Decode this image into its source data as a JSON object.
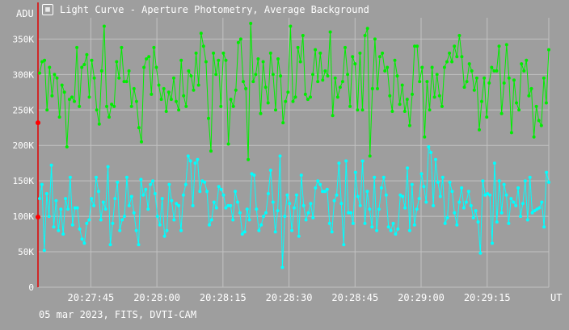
{
  "window": {
    "title": "Light Curve - Aperture Photometry, Average Background",
    "app_icon": "film-frame-icon"
  },
  "footer": {
    "caption": "05 mar 2023, FITS, DVTI-CAM"
  },
  "colors": {
    "background": "#9e9e9e",
    "grid": "#c2c2c2",
    "text": "#ffffff",
    "axis_line": "#e00000",
    "series_green": "#00ee00",
    "series_cyan": "#00ffff",
    "marker_red": "#ff0000"
  },
  "chart_data": {
    "type": "line",
    "title": "Light Curve - Aperture Photometry, Average Background",
    "ylabel": "ADU",
    "xlabel": "UT",
    "ylim": [
      0,
      380000
    ],
    "xlim": [
      "20:27:33",
      "20:29:29"
    ],
    "grid": true,
    "legend": "none",
    "x_ticks": [
      "20:27:45",
      "20:28:00",
      "20:28:15",
      "20:28:30",
      "20:28:45",
      "20:29:00",
      "20:29:15"
    ],
    "y_ticks": [
      {
        "value": 0,
        "label": "0"
      },
      {
        "value": 50000,
        "label": "50K"
      },
      {
        "value": 100000,
        "label": "100K"
      },
      {
        "value": 150000,
        "label": "150K"
      },
      {
        "value": 200000,
        "label": "200K"
      },
      {
        "value": 250000,
        "label": "250K"
      },
      {
        "value": 300000,
        "label": "300K"
      },
      {
        "value": 350000,
        "label": "350K"
      }
    ],
    "reference_markers": [
      {
        "series": "green",
        "value": 232000
      },
      {
        "series": "cyan",
        "value": 99000
      }
    ],
    "series": [
      {
        "id": "green",
        "color": "#00ee00",
        "values": [
          302000,
          318000,
          320000,
          250000,
          310000,
          270000,
          300000,
          295000,
          240000,
          285000,
          275000,
          198000,
          265000,
          268000,
          262000,
          338000,
          255000,
          310000,
          314000,
          328000,
          268000,
          320000,
          295000,
          250000,
          230000,
          305000,
          368000,
          255000,
          240000,
          258000,
          255000,
          318000,
          295000,
          338000,
          290000,
          290000,
          305000,
          255000,
          280000,
          262000,
          225000,
          205000,
          310000,
          322000,
          325000,
          272000,
          338000,
          310000,
          285000,
          265000,
          280000,
          248000,
          275000,
          265000,
          295000,
          262000,
          250000,
          320000,
          270000,
          255000,
          305000,
          298000,
          278000,
          330000,
          285000,
          358000,
          340000,
          318000,
          238000,
          192000,
          330000,
          300000,
          320000,
          255000,
          330000,
          320000,
          202000,
          265000,
          255000,
          278000,
          345000,
          350000,
          290000,
          280000,
          180000,
          372000,
          290000,
          300000,
          322000,
          245000,
          318000,
          282000,
          260000,
          330000,
          300000,
          250000,
          322000,
          298000,
          232000,
          262000,
          275000,
          368000,
          262000,
          268000,
          338000,
          318000,
          355000,
          272000,
          265000,
          268000,
          300000,
          335000,
          290000,
          330000,
          292000,
          305000,
          298000,
          360000,
          242000,
          295000,
          268000,
          282000,
          290000,
          338000,
          300000,
          255000,
          325000,
          315000,
          250000,
          330000,
          250000,
          355000,
          365000,
          185000,
          280000,
          350000,
          280000,
          325000,
          330000,
          305000,
          310000,
          270000,
          248000,
          320000,
          298000,
          258000,
          285000,
          248000,
          265000,
          228000,
          272000,
          340000,
          340000,
          290000,
          310000,
          212000,
          290000,
          250000,
          310000,
          268000,
          300000,
          270000,
          255000,
          310000,
          318000,
          330000,
          318000,
          340000,
          325000,
          355000,
          325000,
          282000,
          290000,
          315000,
          305000,
          278000,
          295000,
          222000,
          262000,
          295000,
          240000,
          288000,
          310000,
          305000,
          305000,
          340000,
          245000,
          288000,
          342000,
          295000,
          218000,
          292000,
          260000,
          250000,
          315000,
          305000,
          320000,
          270000,
          280000,
          212000,
          255000,
          235000,
          228000,
          295000,
          260000,
          335000
        ]
      },
      {
        "id": "cyan",
        "color": "#00ffff",
        "values": [
          125000,
          145000,
          52000,
          132000,
          100000,
          172000,
          85000,
          122000,
          80000,
          110000,
          75000,
          125000,
          110000,
          155000,
          88000,
          112000,
          112000,
          82000,
          68000,
          62000,
          90000,
          95000,
          125000,
          115000,
          155000,
          135000,
          95000,
          120000,
          110000,
          170000,
          60000,
          90000,
          125000,
          148000,
          80000,
          95000,
          100000,
          155000,
          115000,
          128000,
          105000,
          80000,
          60000,
          152000,
          130000,
          138000,
          110000,
          145000,
          150000,
          132000,
          100000,
          88000,
          125000,
          72000,
          80000,
          145000,
          122000,
          95000,
          118000,
          115000,
          80000,
          130000,
          145000,
          185000,
          178000,
          115000,
          175000,
          180000,
          135000,
          150000,
          148000,
          135000,
          88000,
          95000,
          120000,
          112000,
          142000,
          138000,
          130000,
          112000,
          115000,
          115000,
          95000,
          135000,
          120000,
          105000,
          75000,
          78000,
          110000,
          95000,
          160000,
          158000,
          110000,
          80000,
          88000,
          100000,
          105000,
          132000,
          165000,
          120000,
          78000,
          108000,
          185000,
          28000,
          100000,
          130000,
          118000,
          80000,
          112000,
          130000,
          72000,
          158000,
          115000,
          95000,
          105000,
          118000,
          98000,
          140000,
          150000,
          145000,
          135000,
          135000,
          138000,
          90000,
          78000,
          122000,
          130000,
          175000,
          118000,
          60000,
          178000,
          105000,
          105000,
          90000,
          162000,
          128000,
          115000,
          178000,
          90000,
          135000,
          110000,
          85000,
          155000,
          80000,
          110000,
          140000,
          155000,
          130000,
          85000,
          80000,
          90000,
          75000,
          82000,
          130000,
          128000,
          112000,
          168000,
          80000,
          145000,
          88000,
          110000,
          125000,
          160000,
          142000,
          120000,
          198000,
          190000,
          115000,
          180000,
          148000,
          128000,
          155000,
          90000,
          98000,
          148000,
          135000,
          105000,
          88000,
          120000,
          140000,
          112000,
          120000,
          135000,
          115000,
          98000,
          108000,
          92000,
          48000,
          150000,
          130000,
          132000,
          130000,
          62000,
          175000,
          92000,
          150000,
          105000,
          145000,
          130000,
          90000,
          125000,
          120000,
          115000,
          140000,
          100000,
          118000,
          150000,
          95000,
          155000,
          105000,
          108000,
          110000,
          112000,
          120000,
          85000,
          162000,
          148000
        ]
      }
    ]
  }
}
